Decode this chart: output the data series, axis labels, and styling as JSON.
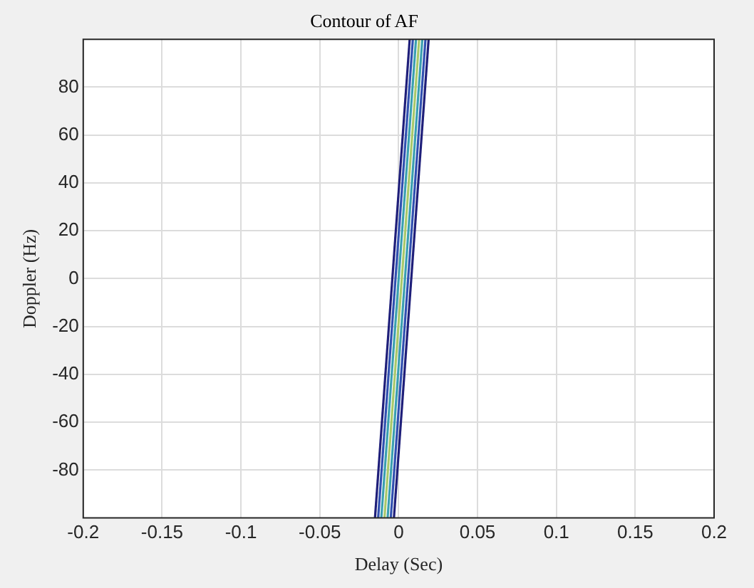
{
  "chart_data": {
    "type": "line",
    "title": "Contour of AF",
    "xlabel": "Delay (Sec)",
    "ylabel": "Doppler (Hz)",
    "xlim": [
      -0.2,
      0.2
    ],
    "xticks": [
      -0.2,
      -0.15,
      -0.1,
      -0.05,
      0,
      0.05,
      0.1,
      0.15,
      0.2
    ],
    "ylim": [
      -100,
      100
    ],
    "yticks": [
      -80,
      -60,
      -40,
      -20,
      0,
      20,
      40,
      60,
      80
    ],
    "grid": true,
    "legend": false,
    "marker": "none",
    "line_style": "solid",
    "series": [
      {
        "color": "#1f1f7a",
        "x": [
          -0.015,
          0.007
        ],
        "values": [
          -100,
          100
        ]
      },
      {
        "color": "#1f1f7a",
        "x": [
          -0.003,
          0.019
        ],
        "values": [
          -100,
          100
        ]
      },
      {
        "color": "#3050b0",
        "x": [
          -0.013,
          0.009
        ],
        "values": [
          -100,
          100
        ]
      },
      {
        "color": "#3050b0",
        "x": [
          -0.005,
          0.017
        ],
        "values": [
          -100,
          100
        ]
      },
      {
        "color": "#3a9fb0",
        "x": [
          -0.011,
          0.011
        ],
        "values": [
          -100,
          100
        ]
      },
      {
        "color": "#3a9fb0",
        "x": [
          -0.007,
          0.015
        ],
        "values": [
          -100,
          100
        ]
      },
      {
        "color": "#a8c86a",
        "x": [
          -0.009,
          0.013
        ],
        "values": [
          -100,
          100
        ]
      }
    ]
  }
}
